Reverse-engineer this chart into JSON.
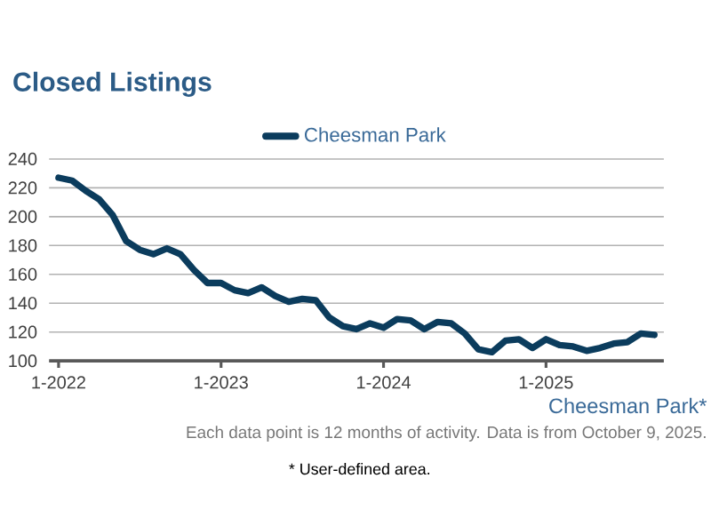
{
  "chart_data": {
    "type": "line",
    "title": "Closed Listings",
    "x": [
      "2022-01",
      "2022-02",
      "2022-03",
      "2022-04",
      "2022-05",
      "2022-06",
      "2022-07",
      "2022-08",
      "2022-09",
      "2022-10",
      "2022-11",
      "2022-12",
      "2023-01",
      "2023-02",
      "2023-03",
      "2023-04",
      "2023-05",
      "2023-06",
      "2023-07",
      "2023-08",
      "2023-09",
      "2023-10",
      "2023-11",
      "2023-12",
      "2024-01",
      "2024-02",
      "2024-03",
      "2024-04",
      "2024-05",
      "2024-06",
      "2024-07",
      "2024-08",
      "2024-09",
      "2024-10",
      "2024-11",
      "2024-12",
      "2025-01",
      "2025-02",
      "2025-03",
      "2025-04",
      "2025-05",
      "2025-06",
      "2025-07",
      "2025-08",
      "2025-09"
    ],
    "series": [
      {
        "name": "Cheesman Park",
        "color": "#0b3c5d",
        "values": [
          227,
          225,
          218,
          212,
          201,
          183,
          177,
          174,
          178,
          174,
          163,
          154,
          154,
          149,
          147,
          151,
          145,
          141,
          143,
          142,
          130,
          124,
          122,
          126,
          123,
          129,
          128,
          122,
          127,
          126,
          119,
          108,
          106,
          114,
          115,
          109,
          115,
          111,
          110,
          107,
          109,
          112,
          113,
          119,
          118
        ]
      }
    ],
    "xlim": [
      "2021-12-10",
      "2025-09-22"
    ],
    "xticks": [
      {
        "value": "2022-01",
        "label": "1-2022"
      },
      {
        "value": "2023-01",
        "label": "1-2023"
      },
      {
        "value": "2024-01",
        "label": "1-2024"
      },
      {
        "value": "2025-01",
        "label": "1-2025"
      }
    ],
    "ylim": [
      100,
      240
    ],
    "yticks": [
      100,
      120,
      140,
      160,
      180,
      200,
      220,
      240
    ],
    "grid": "y",
    "legend": "top",
    "marker": "none",
    "line_style": "solid",
    "annotations": [
      "Cheesman Park*",
      "Each data point is 12 months of activity. Data is from October 9, 2025.",
      "* User-defined area."
    ]
  }
}
